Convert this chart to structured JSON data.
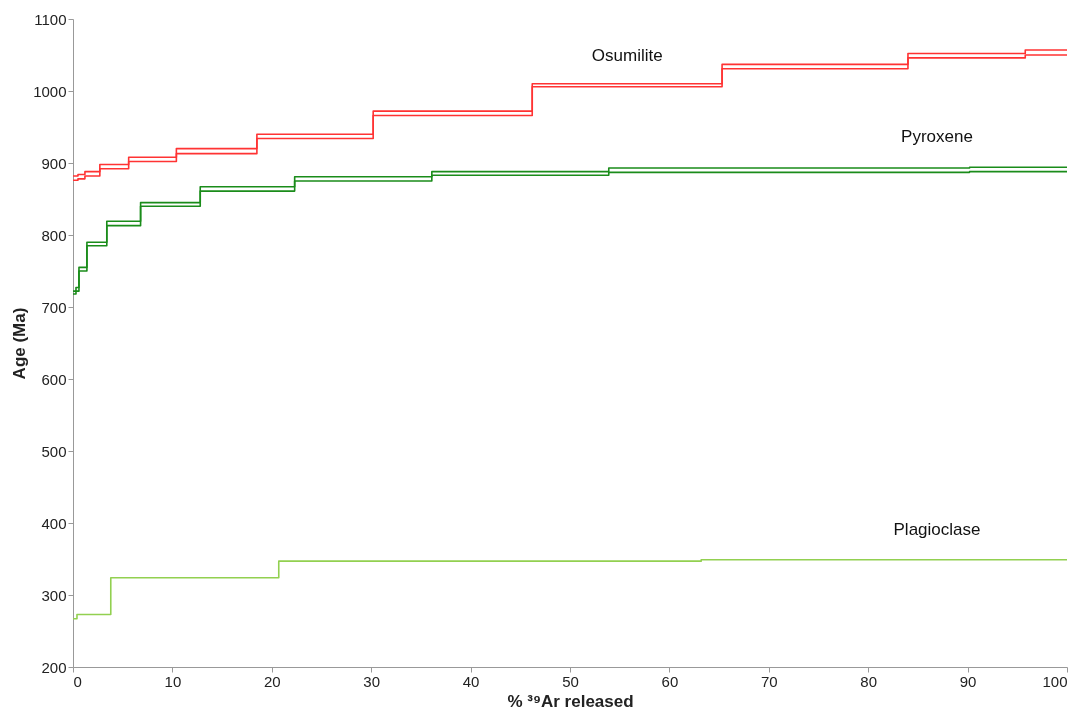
{
  "chart_data": {
    "type": "step",
    "xlabel": "% ³⁹Ar released",
    "ylabel": "Age (Ma)",
    "xlim": [
      0,
      100
    ],
    "xticks": [
      0,
      10,
      20,
      30,
      40,
      50,
      60,
      70,
      80,
      90,
      100
    ],
    "ylim": [
      200,
      1100
    ],
    "yticks": [
      200,
      300,
      400,
      500,
      600,
      700,
      800,
      900,
      1000,
      1100
    ],
    "grid": false,
    "marker": "none",
    "line_style": "solid",
    "series": [
      {
        "name": "Osumilite",
        "color": "#ff3333",
        "x": [
          0,
          0.5,
          1.2,
          2.7,
          5.6,
          10.4,
          18.5,
          30.2,
          46.2,
          65.3,
          84,
          95.8,
          100
        ],
        "values": [
          882,
          884,
          888,
          898,
          908,
          920,
          940,
          972,
          1010,
          1037,
          1052,
          1057,
          1057
        ]
      },
      {
        "color": "#ff3333",
        "x": [
          0,
          0.5,
          1.2,
          2.7,
          5.6,
          10.4,
          18.5,
          30.2,
          46.2,
          65.3,
          84,
          95.8,
          100
        ],
        "values": [
          876,
          878,
          882,
          892,
          902,
          913,
          934,
          966,
          1006,
          1031,
          1046,
          1050,
          1050
        ]
      },
      {
        "name": "Pyroxene",
        "color": "#1a8c1a",
        "x": [
          0,
          0.3,
          0.6,
          1.4,
          3.4,
          6.8,
          12.8,
          22.3,
          36.1,
          53.9,
          73.7,
          90.2,
          98.2,
          100
        ],
        "values": [
          722,
          727,
          755,
          790,
          819,
          845,
          867,
          881,
          888,
          893,
          893,
          894,
          894,
          894
        ]
      },
      {
        "color": "#1a8c1a",
        "x": [
          0,
          0.3,
          0.6,
          1.4,
          3.4,
          6.8,
          12.8,
          22.3,
          36.1,
          53.9,
          73.7,
          90.2,
          98.2,
          100
        ],
        "values": [
          718,
          722,
          750,
          785,
          813,
          840,
          861,
          875,
          883,
          887,
          887,
          888,
          888,
          888
        ]
      },
      {
        "name": "Plagioclase",
        "color": "#92d050",
        "x": [
          0,
          0.4,
          3.8,
          20.7,
          63.2,
          100
        ],
        "values": [
          267,
          273,
          324,
          347,
          349,
          349
        ]
      }
    ]
  }
}
